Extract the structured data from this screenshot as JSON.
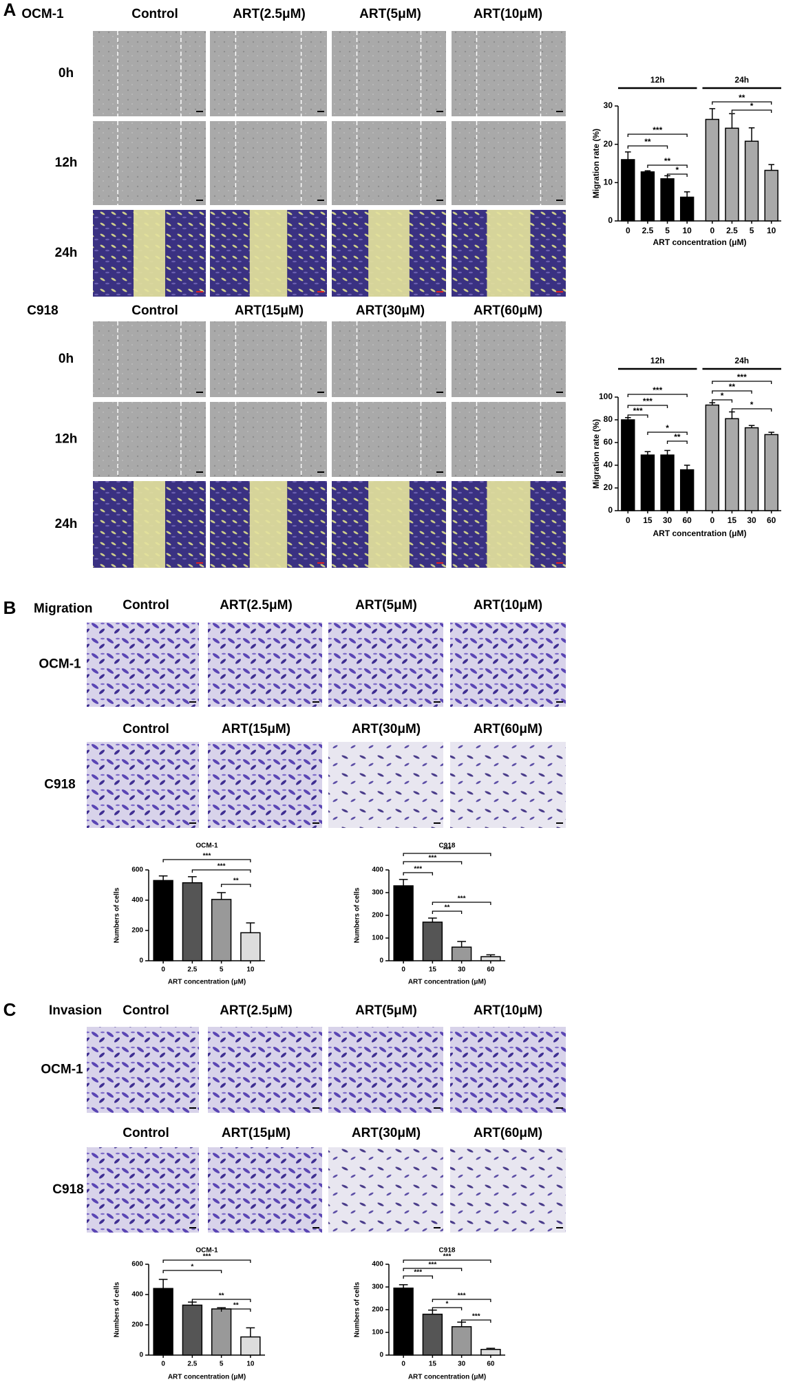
{
  "figure": {
    "a": {
      "label": "A",
      "blocks": [
        {
          "cell_line": "OCM-1",
          "columns": [
            "Control",
            "ART(2.5μM)",
            "ART(5μM)",
            "ART(10μM)"
          ],
          "rows": [
            "0h",
            "12h",
            "24h"
          ]
        },
        {
          "cell_line": "C918",
          "columns": [
            "Control",
            "ART(15μM)",
            "ART(30μM)",
            "ART(60μM)"
          ],
          "rows": [
            "0h",
            "12h",
            "24h"
          ]
        }
      ]
    },
    "b": {
      "label": "B",
      "assay": "Migration",
      "blocks": [
        {
          "cell_line": "OCM-1",
          "columns": [
            "Control",
            "ART(2.5μM)",
            "ART(5μM)",
            "ART(10μM)"
          ]
        },
        {
          "cell_line": "C918",
          "columns": [
            "Control",
            "ART(15μM)",
            "ART(30μM)",
            "ART(60μM)"
          ]
        }
      ]
    },
    "c": {
      "label": "C",
      "assay": "Invasion",
      "blocks": [
        {
          "cell_line": "OCM-1",
          "columns": [
            "Control",
            "ART(2.5μM)",
            "ART(5μM)",
            "ART(10μM)"
          ]
        },
        {
          "cell_line": "C918",
          "columns": [
            "Control",
            "ART(15μM)",
            "ART(30μM)",
            "ART(60μM)"
          ]
        }
      ]
    }
  },
  "chart_data": [
    {
      "type": "bar",
      "ylabel": "Migration rate (%)",
      "xlabel": "ART concentration (μM)",
      "ylim": [
        0,
        30
      ],
      "yticks": [
        0,
        10,
        20,
        30
      ],
      "groups": [
        {
          "name": "12h",
          "color": "#000000",
          "categories": [
            "0",
            "2.5",
            "5",
            "10"
          ],
          "values": [
            16,
            12.8,
            11,
            6.2
          ],
          "errors": [
            2,
            0.3,
            0.8,
            1.4
          ]
        },
        {
          "name": "24h",
          "color": "#a9a9a9",
          "categories": [
            "0",
            "2.5",
            "5",
            "10"
          ],
          "values": [
            26.5,
            24.2,
            20.8,
            13.2
          ],
          "errors": [
            2.8,
            3.8,
            3.5,
            1.5
          ]
        }
      ],
      "annotations": [
        "***",
        "**",
        "**",
        "*",
        "**",
        "*"
      ]
    },
    {
      "type": "bar",
      "ylabel": "Migration rate (%)",
      "xlabel": "ART concentration (μM)",
      "ylim": [
        0,
        100
      ],
      "yticks": [
        0,
        20,
        40,
        60,
        80,
        100
      ],
      "groups": [
        {
          "name": "12h",
          "color": "#000000",
          "categories": [
            "0",
            "15",
            "30",
            "60"
          ],
          "values": [
            80,
            49,
            49,
            36
          ],
          "errors": [
            2,
            3,
            4,
            4
          ]
        },
        {
          "name": "24h",
          "color": "#a9a9a9",
          "categories": [
            "0",
            "15",
            "30",
            "60"
          ],
          "values": [
            93,
            81,
            73,
            67
          ],
          "errors": [
            2,
            6,
            2,
            2
          ]
        }
      ],
      "annotations": [
        "***",
        "***",
        "***",
        "*",
        "**",
        "***",
        "**",
        "*",
        "*"
      ]
    },
    {
      "type": "bar",
      "title": "OCM-1",
      "ylabel": "Numbers of cells",
      "xlabel": "ART concentration (μM)",
      "ylim": [
        0,
        600
      ],
      "yticks": [
        0,
        200,
        400,
        600
      ],
      "groups": [
        {
          "colors": [
            "#000000",
            "#555555",
            "#999999",
            "#dddddd"
          ],
          "categories": [
            "0",
            "2.5",
            "5",
            "10"
          ],
          "values": [
            530,
            515,
            405,
            185
          ],
          "errors": [
            30,
            40,
            45,
            65
          ]
        }
      ],
      "annotations": [
        "***",
        "***",
        "**"
      ]
    },
    {
      "type": "bar",
      "title": "C918",
      "ylabel": "Numbers of cells",
      "xlabel": "ART concentration (μM)",
      "ylim": [
        0,
        400
      ],
      "yticks": [
        0,
        100,
        200,
        300,
        400
      ],
      "groups": [
        {
          "colors": [
            "#000000",
            "#555555",
            "#999999",
            "#dddddd"
          ],
          "categories": [
            "0",
            "15",
            "30",
            "60"
          ],
          "values": [
            330,
            170,
            60,
            18
          ],
          "errors": [
            28,
            18,
            25,
            8
          ]
        }
      ],
      "annotations": [
        "***",
        "***",
        "***",
        "**",
        "***"
      ]
    },
    {
      "type": "bar",
      "title": "OCM-1",
      "ylabel": "Numbers of cells",
      "xlabel": "ART concentration (μM)",
      "ylim": [
        0,
        600
      ],
      "yticks": [
        0,
        200,
        400,
        600
      ],
      "groups": [
        {
          "colors": [
            "#000000",
            "#555555",
            "#999999",
            "#dddddd"
          ],
          "categories": [
            "0",
            "2.5",
            "5",
            "10"
          ],
          "values": [
            440,
            330,
            305,
            120
          ],
          "errors": [
            60,
            20,
            8,
            60
          ]
        }
      ],
      "annotations": [
        "***",
        "*",
        "**",
        "**"
      ]
    },
    {
      "type": "bar",
      "title": "C918",
      "ylabel": "Numbers of cells",
      "xlabel": "ART concentration (μM)",
      "ylim": [
        0,
        400
      ],
      "yticks": [
        0,
        100,
        200,
        300,
        400
      ],
      "groups": [
        {
          "colors": [
            "#000000",
            "#555555",
            "#999999",
            "#dddddd"
          ],
          "categories": [
            "0",
            "15",
            "30",
            "60"
          ],
          "values": [
            295,
            180,
            125,
            25
          ],
          "errors": [
            15,
            18,
            20,
            5
          ]
        }
      ],
      "annotations": [
        "***",
        "***",
        "***",
        "*",
        "***",
        "***"
      ]
    }
  ]
}
